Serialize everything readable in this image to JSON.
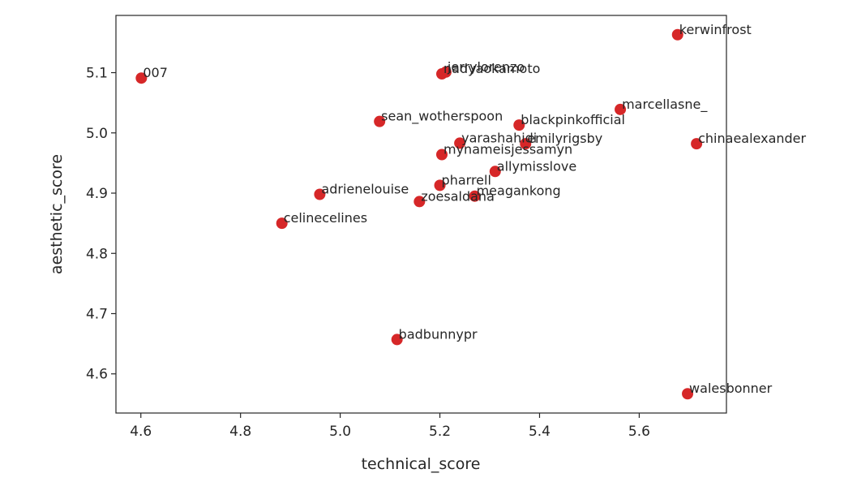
{
  "chart_data": {
    "type": "scatter",
    "title": "",
    "xlabel": "technical_score",
    "ylabel": "aesthetic_score",
    "xlim": [
      4.55,
      5.775
    ],
    "ylim": [
      4.535,
      5.195
    ],
    "xticks": [
      4.6,
      4.8,
      5.0,
      5.2,
      5.4,
      5.6
    ],
    "yticks": [
      4.6,
      4.7,
      4.8,
      4.9,
      5.0,
      5.1
    ],
    "grid": false,
    "point_color": "#d62728",
    "points": [
      {
        "label": "kerwinfrost",
        "x": 5.677,
        "y": 5.163
      },
      {
        "label": "007",
        "x": 4.601,
        "y": 5.091
      },
      {
        "label": "jerrylorenzo",
        "x": 5.212,
        "y": 5.101
      },
      {
        "label": "nadyaokamoto",
        "x": 5.204,
        "y": 5.098
      },
      {
        "label": "marcellasne_",
        "x": 5.562,
        "y": 5.039
      },
      {
        "label": "sean_wotherspoon",
        "x": 5.079,
        "y": 5.019
      },
      {
        "label": "blackpinkofficial",
        "x": 5.359,
        "y": 5.013
      },
      {
        "label": "chinaealexander",
        "x": 5.715,
        "y": 4.982
      },
      {
        "label": "yarashahidi",
        "x": 5.24,
        "y": 4.983
      },
      {
        "label": "emilyrigsby",
        "x": 5.372,
        "y": 4.982
      },
      {
        "label": "mynameisjessamyn",
        "x": 5.204,
        "y": 4.964
      },
      {
        "label": "allymisslove",
        "x": 5.311,
        "y": 4.936
      },
      {
        "label": "pharrell",
        "x": 5.2,
        "y": 4.913
      },
      {
        "label": "adrienelouise",
        "x": 4.959,
        "y": 4.898
      },
      {
        "label": "meagankong",
        "x": 5.27,
        "y": 4.895
      },
      {
        "label": "zoesaldana",
        "x": 5.159,
        "y": 4.886
      },
      {
        "label": "celinecelines",
        "x": 4.883,
        "y": 4.85
      },
      {
        "label": "badbunnypr",
        "x": 5.114,
        "y": 4.657
      },
      {
        "label": "walesbonner",
        "x": 5.697,
        "y": 4.567
      }
    ]
  }
}
